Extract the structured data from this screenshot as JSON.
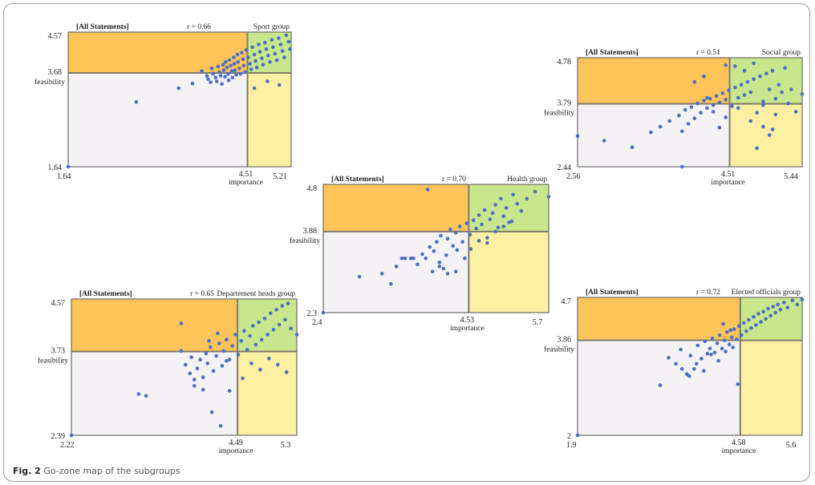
{
  "caption": {
    "label": "Fig. 2",
    "text": "Go-zone map of the subgroups"
  },
  "colors": {
    "top_left": "#fdc45a",
    "top_right": "#c8e68c",
    "bottom_left": "#f4f2f4",
    "bottom_right": "#fdf0a2",
    "dot": "#4b6fc2",
    "border": "#6b6b6b"
  },
  "chart_data": [
    {
      "type": "scatter",
      "header_left": "[All Statements]",
      "correlation": "r = 0.66",
      "group": "Sport group",
      "xlabel": "importance",
      "ylabel": "feasibility",
      "xlim": [
        1.64,
        5.21
      ],
      "ylim": [
        1.64,
        4.57
      ],
      "x_min_label": "1.64",
      "x_max_label": "5.21",
      "y_min_label": "1.64",
      "y_max_label": "4.57",
      "x_mean": 4.51,
      "y_mean": 3.68,
      "x_mean_label": "4.51",
      "y_mean_label": "3.68",
      "x": [
        1.64,
        2.73,
        3.41,
        3.63,
        3.78,
        3.86,
        3.88,
        3.92,
        3.94,
        3.96,
        4.0,
        4.02,
        4.04,
        4.06,
        4.08,
        4.1,
        4.12,
        4.13,
        4.15,
        4.16,
        4.18,
        4.2,
        4.21,
        4.22,
        4.24,
        4.26,
        4.27,
        4.29,
        4.3,
        4.31,
        4.33,
        4.35,
        4.36,
        4.38,
        4.4,
        4.42,
        4.44,
        4.45,
        4.47,
        4.49,
        4.52,
        4.55,
        4.57,
        4.59,
        4.62,
        4.64,
        4.66,
        4.69,
        4.71,
        4.74,
        4.76,
        4.79,
        4.81,
        4.84,
        4.87,
        4.9,
        4.92,
        4.95,
        4.98,
        5.01,
        5.04,
        5.07,
        5.1,
        5.13,
        5.17,
        5.19,
        4.62,
        4.83,
        5.02
      ],
      "y": [
        1.64,
        3.05,
        3.35,
        3.45,
        3.72,
        3.62,
        3.55,
        3.48,
        3.78,
        3.66,
        3.58,
        3.5,
        3.82,
        3.7,
        3.62,
        3.44,
        3.86,
        3.74,
        3.6,
        3.92,
        3.8,
        3.66,
        3.52,
        3.96,
        3.84,
        3.72,
        3.58,
        4.02,
        3.88,
        3.74,
        3.64,
        4.08,
        3.92,
        3.78,
        3.66,
        4.12,
        3.98,
        3.84,
        3.7,
        4.18,
        4.02,
        3.88,
        3.76,
        4.24,
        4.08,
        3.94,
        3.8,
        4.3,
        4.14,
        4.0,
        3.86,
        4.34,
        4.2,
        4.06,
        3.92,
        4.4,
        4.24,
        4.1,
        3.96,
        4.44,
        4.3,
        4.16,
        4.02,
        4.5,
        4.36,
        4.2,
        3.35,
        3.5,
        3.42
      ]
    },
    {
      "type": "scatter",
      "header_left": "[All Statements]",
      "correlation": "r = 0.51",
      "group": "Social group",
      "xlabel": "importance",
      "ylabel": "feasibility",
      "xlim": [
        2.56,
        5.44
      ],
      "ylim": [
        2.44,
        4.78
      ],
      "x_min_label": "2.56",
      "x_max_label": "5.44",
      "y_min_label": "2.44",
      "y_max_label": "4.78",
      "x_mean": 4.51,
      "y_mean": 3.79,
      "x_mean_label": "4.51",
      "y_mean_label": "3.79",
      "x": [
        2.56,
        2.9,
        3.26,
        3.5,
        3.62,
        3.74,
        3.86,
        3.9,
        3.94,
        3.98,
        4.02,
        4.06,
        4.1,
        4.14,
        4.18,
        4.22,
        4.26,
        4.3,
        4.34,
        4.38,
        4.42,
        4.46,
        4.5,
        4.54,
        4.58,
        4.62,
        4.66,
        4.7,
        4.74,
        4.78,
        4.82,
        4.86,
        4.9,
        4.94,
        4.98,
        5.02,
        5.06,
        5.1,
        5.14,
        5.18,
        5.22,
        5.26,
        5.3,
        5.36,
        5.44,
        4.06,
        4.18,
        4.58,
        4.7,
        4.82,
        4.94,
        5.06,
        4.3,
        4.46,
        4.62,
        4.78,
        4.94,
        5.1,
        4.22,
        4.38,
        4.86,
        5.02
      ],
      "y": [
        3.1,
        3.0,
        2.86,
        3.18,
        3.3,
        3.42,
        3.54,
        3.2,
        3.66,
        3.36,
        3.72,
        3.48,
        3.8,
        3.6,
        3.86,
        3.7,
        3.9,
        3.76,
        3.96,
        3.82,
        4.02,
        3.88,
        4.08,
        3.74,
        4.14,
        3.92,
        4.2,
        3.98,
        4.26,
        4.04,
        4.32,
        3.6,
        4.38,
        3.84,
        4.44,
        4.1,
        4.5,
        3.9,
        4.2,
        4.04,
        4.56,
        3.8,
        4.1,
        3.62,
        4.0,
        4.26,
        4.38,
        4.6,
        4.5,
        4.66,
        3.3,
        3.24,
        3.62,
        3.5,
        3.7,
        3.42,
        3.76,
        3.56,
        3.92,
        3.28,
        2.84,
        3.12
      ],
      "extra_points": [
        [
          3.9,
          2.44
        ],
        [
          4.46,
          4.62
        ]
      ]
    },
    {
      "type": "scatter",
      "header_left": "[All Statements]",
      "correlation": "r = 0.70",
      "group": "Health group",
      "xlabel": "importance",
      "ylabel": "feasibility",
      "xlim": [
        2.4,
        5.7
      ],
      "ylim": [
        2.3,
        4.8
      ],
      "x_min_label": "2.4",
      "x_max_label": "5.7",
      "y_min_label": "2.3",
      "y_max_label": "4.8",
      "x_mean": 4.53,
      "y_mean": 3.88,
      "x_mean_label": "4.53",
      "y_mean_label": "3.88",
      "x": [
        2.4,
        2.93,
        3.26,
        3.39,
        3.47,
        3.55,
        3.6,
        3.68,
        3.72,
        3.78,
        3.85,
        3.9,
        3.96,
        4.02,
        4.06,
        4.1,
        4.12,
        4.16,
        4.2,
        4.22,
        4.26,
        4.3,
        4.34,
        4.36,
        4.4,
        4.44,
        4.47,
        4.5,
        4.55,
        4.6,
        4.64,
        4.68,
        4.72,
        4.76,
        4.8,
        4.84,
        4.88,
        4.92,
        4.96,
        5.0,
        5.04,
        5.08,
        5.12,
        5.18,
        5.24,
        5.3,
        5.38,
        5.5,
        5.7,
        4.1,
        4.22,
        4.34,
        4.56,
        4.68,
        4.8,
        4.92,
        5.04,
        5.16
      ],
      "y": [
        2.3,
        3.0,
        3.06,
        2.86,
        3.2,
        3.36,
        3.36,
        3.36,
        3.36,
        3.24,
        3.44,
        3.36,
        3.58,
        3.5,
        3.68,
        3.28,
        3.8,
        3.16,
        3.42,
        3.74,
        3.92,
        3.6,
        3.86,
        3.52,
        3.98,
        3.68,
        3.36,
        4.04,
        3.82,
        4.1,
        3.94,
        4.2,
        4.02,
        4.3,
        3.76,
        4.12,
        4.24,
        4.4,
        3.96,
        4.52,
        4.18,
        4.34,
        4.06,
        4.6,
        4.42,
        4.28,
        4.52,
        4.66,
        4.56,
        3.2,
        3.06,
        3.1,
        3.54,
        3.7,
        3.66,
        3.88,
        3.98,
        4.08
      ],
      "extra_points": [
        [
          3.93,
          4.7
        ],
        [
          4.0,
          3.1
        ]
      ]
    },
    {
      "type": "scatter",
      "header_left": "[All Statements]",
      "correlation": "r = 0.65",
      "group": "Departement heads group",
      "xlabel": "importance",
      "ylabel": "feasibility",
      "xlim": [
        2.22,
        5.3
      ],
      "ylim": [
        2.39,
        4.57
      ],
      "x_min_label": "2.22",
      "x_max_label": "5.3",
      "y_min_label": "2.39",
      "y_max_label": "4.57",
      "x_mean": 4.49,
      "y_mean": 3.73,
      "x_mean_label": "4.49",
      "y_mean_label": "3.73",
      "x": [
        2.22,
        3.14,
        3.24,
        3.72,
        3.78,
        3.84,
        3.86,
        3.9,
        3.94,
        3.98,
        4.02,
        4.06,
        4.08,
        4.12,
        4.16,
        4.2,
        4.24,
        4.28,
        4.3,
        4.34,
        4.38,
        4.42,
        4.46,
        4.5,
        4.54,
        4.58,
        4.62,
        4.66,
        4.7,
        4.74,
        4.78,
        4.82,
        4.86,
        4.9,
        4.94,
        4.98,
        5.02,
        5.06,
        5.1,
        5.14,
        5.18,
        5.22,
        5.3,
        3.9,
        4.02,
        4.14,
        4.26,
        4.38,
        4.56,
        4.68,
        4.8,
        4.92,
        5.04,
        5.16,
        4.1,
        4.22,
        4.34
      ],
      "y": [
        2.39,
        3.05,
        3.02,
        3.74,
        3.52,
        3.38,
        3.64,
        3.18,
        3.46,
        3.6,
        3.32,
        3.7,
        3.54,
        3.8,
        3.42,
        3.66,
        3.86,
        3.5,
        3.74,
        3.92,
        3.6,
        3.82,
        4.0,
        3.68,
        3.9,
        4.06,
        3.76,
        3.98,
        4.14,
        3.84,
        4.2,
        3.92,
        4.26,
        4.0,
        4.34,
        4.08,
        4.4,
        4.16,
        4.46,
        4.24,
        4.5,
        4.1,
        4.0,
        3.28,
        3.12,
        2.76,
        2.54,
        3.1,
        3.3,
        3.54,
        3.44,
        3.62,
        3.52,
        3.4,
        3.9,
        4.02,
        3.58
      ],
      "extra_points": [
        [
          3.72,
          4.18
        ]
      ]
    },
    {
      "type": "scatter",
      "header_left": "[All Statements]",
      "correlation": "r = 0.72",
      "group": "Elected officials group",
      "xlabel": "importance",
      "ylabel": "feasibility",
      "xlim": [
        1.9,
        5.6
      ],
      "ylim": [
        2.0,
        4.7
      ],
      "x_min_label": "1.9",
      "x_max_label": "5.6",
      "y_min_label": "2",
      "y_max_label": "4.7",
      "x_mean": 4.58,
      "y_mean": 3.86,
      "x_mean_label": "4.58",
      "y_mean_label": "3.86",
      "x": [
        1.9,
        3.26,
        3.4,
        3.52,
        3.6,
        3.7,
        3.76,
        3.82,
        3.88,
        3.94,
        4.0,
        4.04,
        4.08,
        4.12,
        4.16,
        4.2,
        4.24,
        4.28,
        4.32,
        4.36,
        4.4,
        4.44,
        4.48,
        4.52,
        4.56,
        4.6,
        4.64,
        4.68,
        4.72,
        4.76,
        4.8,
        4.84,
        4.88,
        4.92,
        4.96,
        5.0,
        5.04,
        5.08,
        5.12,
        5.16,
        5.2,
        5.24,
        5.3,
        5.36,
        5.44,
        5.52,
        5.6,
        3.62,
        3.74,
        3.86,
        3.98,
        4.1,
        4.22,
        4.34,
        4.46,
        4.3,
        4.42,
        4.54
      ],
      "y": [
        2.0,
        2.98,
        3.52,
        3.4,
        3.68,
        3.2,
        3.56,
        3.3,
        3.76,
        3.5,
        3.84,
        3.6,
        3.7,
        3.9,
        3.62,
        3.8,
        3.96,
        3.7,
        3.86,
        4.02,
        3.78,
        3.92,
        4.08,
        3.88,
        4.14,
        3.96,
        4.2,
        4.04,
        4.26,
        4.1,
        4.32,
        4.16,
        4.38,
        4.22,
        4.42,
        4.28,
        4.48,
        4.34,
        4.52,
        4.4,
        4.56,
        4.46,
        4.6,
        4.5,
        4.64,
        4.56,
        4.66,
        3.3,
        3.16,
        3.4,
        3.26,
        3.58,
        3.46,
        3.64,
        3.72,
        4.18,
        4.06,
        3.0
      ]
    }
  ]
}
